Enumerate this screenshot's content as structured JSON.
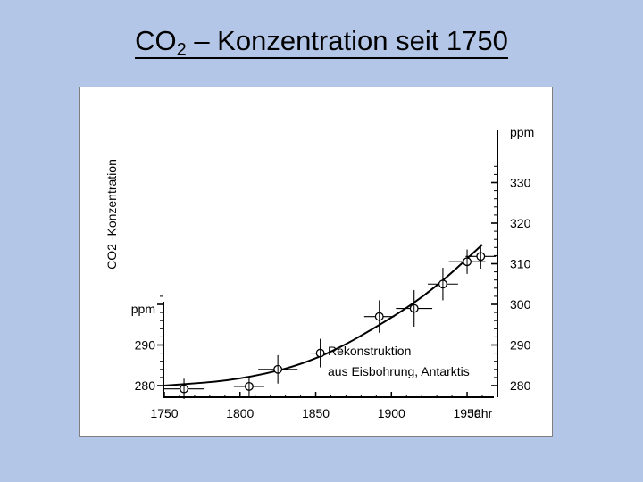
{
  "slide": {
    "title_pre": "CO",
    "title_sub": "2",
    "title_post": " – Konzentration seit 1750"
  },
  "chart_data": {
    "type": "scatter",
    "title": "",
    "ylabel_left": "CO2 -Konzentration",
    "yunit_left": "ppm",
    "yunit_right": "ppm",
    "xunit": "Jahr",
    "xticks": [
      1750,
      1800,
      1850,
      1900,
      1950
    ],
    "xlim": [
      1750,
      2010
    ],
    "yticks_left": [
      280,
      290
    ],
    "yticks_right": [
      280,
      290,
      300,
      310,
      320,
      330
    ],
    "ylim": [
      278,
      333
    ],
    "annotation": [
      "Rekonstruktion",
      "aus Eisbohrung, Antarktis"
    ],
    "series": [
      {
        "points": [
          {
            "x": 1763,
            "y": 279.2,
            "xerr": 13,
            "yerr": 2.5
          },
          {
            "x": 1806,
            "y": 279.8,
            "xerr": 10,
            "yerr": 2.5
          },
          {
            "x": 1825,
            "y": 284,
            "xerr": 13,
            "yerr": 3.5
          },
          {
            "x": 1853,
            "y": 288,
            "xerr": 6,
            "yerr": 3.5
          },
          {
            "x": 1892,
            "y": 297,
            "xerr": 10,
            "yerr": 4
          },
          {
            "x": 1915,
            "y": 299,
            "xerr": 12,
            "yerr": 4.5
          },
          {
            "x": 1934,
            "y": 305,
            "xerr": 10,
            "yerr": 4
          },
          {
            "x": 1950,
            "y": 310.5,
            "xerr": 12,
            "yerr": 3
          },
          {
            "x": 1959,
            "y": 311.8,
            "xerr": 10,
            "yerr": 3
          }
        ]
      }
    ],
    "fit_curve": [
      [
        1750,
        280
      ],
      [
        1800,
        281.4
      ],
      [
        1850,
        286
      ],
      [
        1900,
        296.5
      ],
      [
        1930,
        304.4
      ],
      [
        1960,
        314.7
      ]
    ]
  }
}
